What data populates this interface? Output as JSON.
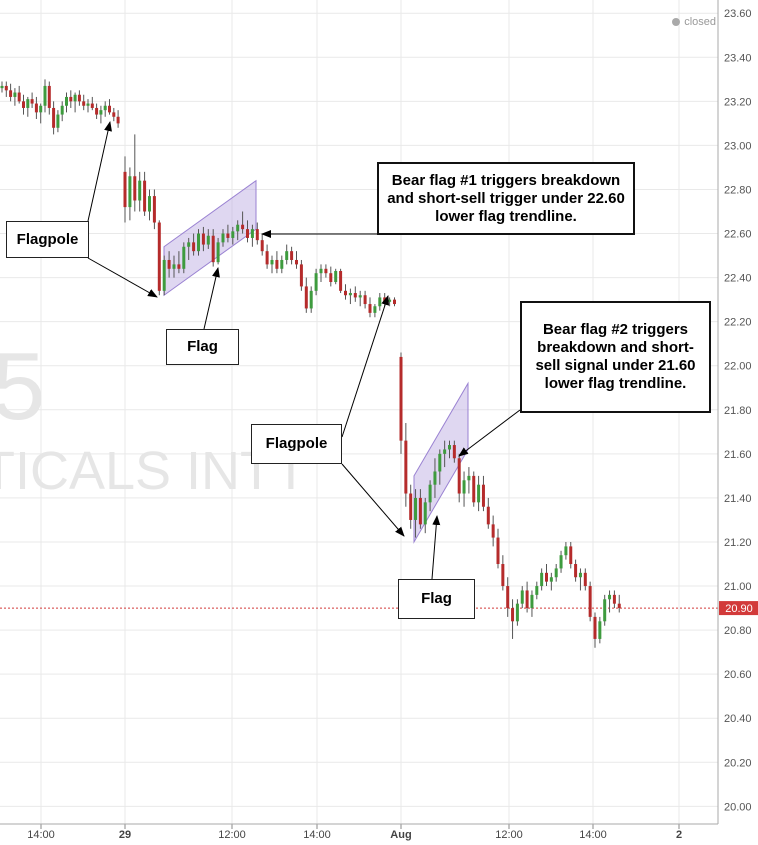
{
  "status": {
    "label": "closed"
  },
  "watermark": {
    "big": "5",
    "name": "TICALS INT'I"
  },
  "annotations": {
    "flagpole_1": "Flagpole",
    "flag_1": "Flag",
    "bear_flag_1": "Bear flag #1 triggers breakdown and short-sell trigger under 22.60 lower flag trendline.",
    "flagpole_2": "Flagpole",
    "flag_2": "Flag",
    "bear_flag_2": "Bear flag #2 triggers breakdown and short-sell signal under 21.60 lower flag trendline."
  },
  "colors": {
    "up": "#3e9b3e",
    "down": "#b52b2b",
    "grid": "#e9e9e9",
    "channel_fill": "#b9a6e0",
    "channel_stroke": "#9a82d2",
    "price_tag": "#d23a3a"
  },
  "chart_data": {
    "type": "candlestick",
    "y_axis": {
      "min": 19.92,
      "max": 23.66,
      "ticks": [
        20.0,
        20.2,
        20.4,
        20.6,
        20.8,
        21.0,
        21.2,
        21.4,
        21.6,
        21.8,
        22.0,
        22.2,
        22.4,
        22.6,
        22.8,
        23.0,
        23.2,
        23.4,
        23.6
      ],
      "position": "right"
    },
    "x_axis": {
      "ticks": [
        "14:00",
        "29",
        "12:00",
        "14:00",
        "Aug",
        "12:00",
        "14:00",
        "2"
      ]
    },
    "last_price": {
      "value": 20.9,
      "label": "20.90"
    },
    "series": [
      {
        "name": "",
        "ohlc": [
          [
            23.26,
            23.29,
            23.24,
            23.27
          ],
          [
            23.27,
            23.29,
            23.22,
            23.25
          ],
          [
            23.25,
            23.28,
            23.2,
            23.22
          ],
          [
            23.22,
            23.26,
            23.18,
            23.24
          ],
          [
            23.24,
            23.27,
            23.19,
            23.2
          ],
          [
            23.2,
            23.23,
            23.14,
            23.17
          ],
          [
            23.17,
            23.22,
            23.13,
            23.21
          ],
          [
            23.21,
            23.24,
            23.17,
            23.19
          ],
          [
            23.19,
            23.22,
            23.12,
            23.15
          ],
          [
            23.15,
            23.19,
            23.1,
            23.18
          ],
          [
            23.18,
            23.3,
            23.15,
            23.27
          ],
          [
            23.27,
            23.29,
            23.14,
            23.17
          ],
          [
            23.17,
            23.2,
            23.05,
            23.08
          ],
          [
            23.08,
            23.16,
            23.06,
            23.14
          ],
          [
            23.14,
            23.2,
            23.11,
            23.18
          ],
          [
            23.18,
            23.24,
            23.15,
            23.22
          ],
          [
            23.22,
            23.25,
            23.17,
            23.2
          ],
          [
            23.2,
            23.24,
            23.15,
            23.23
          ],
          [
            23.23,
            23.25,
            23.18,
            23.2
          ],
          [
            23.2,
            23.23,
            23.16,
            23.18
          ],
          [
            23.18,
            23.21,
            23.15,
            23.19
          ],
          [
            23.19,
            23.22,
            23.16,
            23.17
          ],
          [
            23.17,
            23.19,
            23.12,
            23.14
          ],
          [
            23.14,
            23.18,
            23.1,
            23.16
          ],
          [
            23.16,
            23.2,
            23.13,
            23.18
          ],
          [
            23.18,
            23.21,
            23.14,
            23.15
          ],
          [
            23.15,
            23.17,
            23.11,
            23.13
          ],
          [
            23.13,
            23.16,
            23.08,
            23.1
          ],
          [
            22.88,
            22.95,
            22.65,
            22.72
          ],
          [
            22.72,
            22.9,
            22.66,
            22.86
          ],
          [
            22.86,
            23.05,
            22.7,
            22.75
          ],
          [
            22.75,
            22.88,
            22.7,
            22.84
          ],
          [
            22.84,
            22.88,
            22.68,
            22.7
          ],
          [
            22.7,
            22.8,
            22.66,
            22.77
          ],
          [
            22.77,
            22.8,
            22.62,
            22.65
          ],
          [
            22.65,
            22.66,
            22.32,
            22.34
          ],
          [
            22.34,
            22.5,
            22.32,
            22.48
          ],
          [
            22.48,
            22.52,
            22.4,
            22.44
          ],
          [
            22.44,
            22.5,
            22.4,
            22.46
          ],
          [
            22.46,
            22.52,
            22.42,
            22.44
          ],
          [
            22.44,
            22.56,
            22.42,
            22.54
          ],
          [
            22.54,
            22.58,
            22.48,
            22.56
          ],
          [
            22.56,
            22.6,
            22.5,
            22.52
          ],
          [
            22.52,
            22.62,
            22.5,
            22.6
          ],
          [
            22.6,
            22.63,
            22.52,
            22.55
          ],
          [
            22.55,
            22.62,
            22.53,
            22.59
          ],
          [
            22.59,
            22.62,
            22.45,
            22.47
          ],
          [
            22.47,
            22.58,
            22.46,
            22.56
          ],
          [
            22.56,
            22.62,
            22.54,
            22.6
          ],
          [
            22.6,
            22.64,
            22.56,
            22.58
          ],
          [
            22.58,
            22.63,
            22.55,
            22.61
          ],
          [
            22.61,
            22.66,
            22.57,
            22.64
          ],
          [
            22.64,
            22.7,
            22.6,
            22.62
          ],
          [
            22.62,
            22.66,
            22.56,
            22.58
          ],
          [
            22.58,
            22.64,
            22.54,
            22.62
          ],
          [
            22.62,
            22.65,
            22.55,
            22.57
          ],
          [
            22.57,
            22.6,
            22.5,
            22.52
          ],
          [
            22.52,
            22.55,
            22.44,
            22.46
          ],
          [
            22.46,
            22.5,
            22.42,
            22.48
          ],
          [
            22.48,
            22.52,
            22.42,
            22.44
          ],
          [
            22.44,
            22.5,
            22.42,
            22.48
          ],
          [
            22.48,
            22.55,
            22.46,
            22.52
          ],
          [
            22.52,
            22.54,
            22.46,
            22.48
          ],
          [
            22.48,
            22.52,
            22.44,
            22.46
          ],
          [
            22.46,
            22.48,
            22.34,
            22.36
          ],
          [
            22.36,
            22.4,
            22.24,
            22.26
          ],
          [
            22.26,
            22.36,
            22.24,
            22.34
          ],
          [
            22.34,
            22.44,
            22.32,
            22.42
          ],
          [
            22.42,
            22.46,
            22.38,
            22.44
          ],
          [
            22.44,
            22.46,
            22.4,
            22.42
          ],
          [
            22.42,
            22.45,
            22.36,
            22.38
          ],
          [
            22.38,
            22.44,
            22.37,
            22.43
          ],
          [
            22.43,
            22.44,
            22.33,
            22.34
          ],
          [
            22.34,
            22.37,
            22.3,
            22.32
          ],
          [
            22.32,
            22.35,
            22.28,
            22.33
          ],
          [
            22.33,
            22.36,
            22.29,
            22.31
          ],
          [
            22.31,
            22.34,
            22.27,
            22.32
          ],
          [
            22.32,
            22.34,
            22.26,
            22.28
          ],
          [
            22.28,
            22.31,
            22.22,
            22.24
          ],
          [
            22.24,
            22.28,
            22.22,
            22.27
          ],
          [
            22.27,
            22.33,
            22.25,
            22.31
          ],
          [
            22.31,
            22.33,
            22.27,
            22.29
          ],
          [
            22.29,
            22.31,
            22.27,
            22.3
          ],
          [
            22.3,
            22.31,
            22.27,
            22.28
          ],
          [
            22.04,
            22.06,
            21.6,
            21.66
          ],
          [
            21.66,
            21.74,
            21.36,
            21.42
          ],
          [
            21.42,
            21.46,
            21.26,
            21.3
          ],
          [
            21.3,
            21.44,
            21.22,
            21.4
          ],
          [
            21.4,
            21.44,
            21.26,
            21.28
          ],
          [
            21.28,
            21.4,
            21.24,
            21.38
          ],
          [
            21.38,
            21.48,
            21.34,
            21.46
          ],
          [
            21.46,
            21.58,
            21.4,
            21.52
          ],
          [
            21.52,
            21.62,
            21.46,
            21.6
          ],
          [
            21.6,
            21.66,
            21.54,
            21.62
          ],
          [
            21.62,
            21.66,
            21.58,
            21.64
          ],
          [
            21.64,
            21.66,
            21.56,
            21.58
          ],
          [
            21.58,
            21.6,
            21.38,
            21.42
          ],
          [
            21.42,
            21.52,
            21.36,
            21.48
          ],
          [
            21.48,
            21.54,
            21.42,
            21.5
          ],
          [
            21.5,
            21.52,
            21.36,
            21.38
          ],
          [
            21.38,
            21.5,
            21.34,
            21.46
          ],
          [
            21.46,
            21.5,
            21.34,
            21.36
          ],
          [
            21.36,
            21.4,
            21.26,
            21.28
          ],
          [
            21.28,
            21.32,
            21.18,
            21.22
          ],
          [
            21.22,
            21.26,
            21.08,
            21.1
          ],
          [
            21.1,
            21.14,
            20.98,
            21.0
          ],
          [
            21.0,
            21.04,
            20.86,
            20.9
          ],
          [
            20.9,
            20.94,
            20.76,
            20.84
          ],
          [
            20.84,
            20.94,
            20.82,
            20.92
          ],
          [
            20.92,
            21.0,
            20.9,
            20.98
          ],
          [
            20.98,
            21.02,
            20.88,
            20.9
          ],
          [
            20.9,
            20.98,
            20.86,
            20.96
          ],
          [
            20.96,
            21.02,
            20.94,
            21.0
          ],
          [
            21.0,
            21.08,
            20.98,
            21.06
          ],
          [
            21.06,
            21.1,
            21.0,
            21.02
          ],
          [
            21.02,
            21.06,
            20.98,
            21.04
          ],
          [
            21.04,
            21.1,
            21.02,
            21.08
          ],
          [
            21.08,
            21.16,
            21.06,
            21.14
          ],
          [
            21.14,
            21.2,
            21.12,
            21.18
          ],
          [
            21.18,
            21.2,
            21.08,
            21.1
          ],
          [
            21.1,
            21.12,
            21.02,
            21.04
          ],
          [
            21.04,
            21.08,
            20.98,
            21.06
          ],
          [
            21.06,
            21.08,
            20.98,
            21.0
          ],
          [
            21.0,
            21.02,
            20.84,
            20.86
          ],
          [
            20.86,
            20.88,
            20.72,
            20.76
          ],
          [
            20.76,
            20.86,
            20.74,
            20.84
          ],
          [
            20.84,
            20.96,
            20.82,
            20.94
          ],
          [
            20.94,
            20.98,
            20.88,
            20.96
          ],
          [
            20.96,
            20.98,
            20.9,
            20.92
          ],
          [
            20.92,
            20.96,
            20.88,
            20.9
          ]
        ]
      }
    ]
  }
}
